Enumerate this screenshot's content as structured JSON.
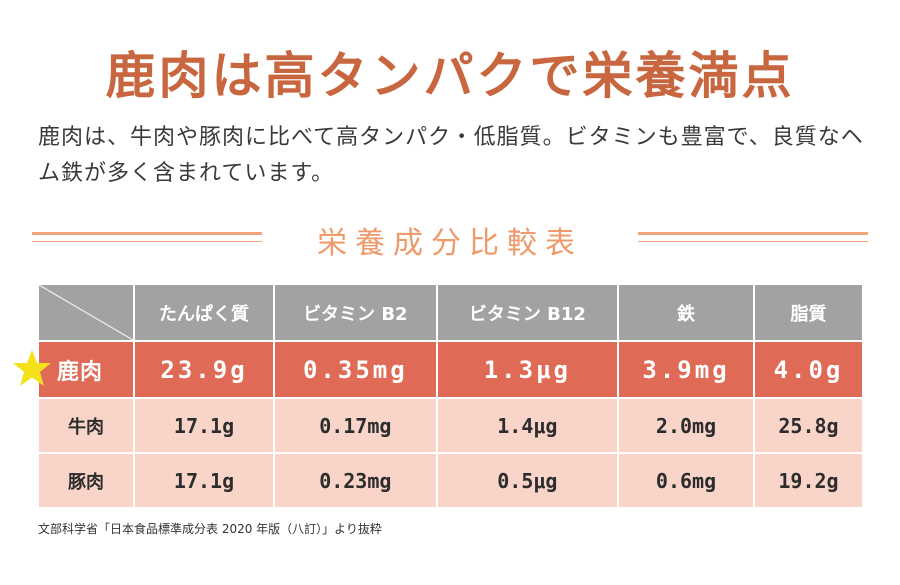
{
  "title": "鹿肉は高タンパクで栄養満点",
  "intro": "鹿肉は、牛肉や豚肉に比べて高タンパク・低脂質。ビタミンも豊富で、良質なヘム鉄が多く含まれています。",
  "section_title": "栄養成分比較表",
  "table": {
    "headers": [
      "たんぱく質",
      "ビタミン B2",
      "ビタミン B12",
      "鉄",
      "脂質"
    ],
    "rows": [
      {
        "label": "鹿肉",
        "values": [
          "23.9g",
          "0.35mg",
          "1.3μg",
          "3.9mg",
          "4.0g"
        ]
      },
      {
        "label": "牛肉",
        "values": [
          "17.1g",
          "0.17mg",
          "1.4μg",
          "2.0mg",
          "25.8g"
        ]
      },
      {
        "label": "豚肉",
        "values": [
          "17.1g",
          "0.23mg",
          "0.5μg",
          "0.6mg",
          "19.2g"
        ]
      }
    ]
  },
  "source": "文部科学省「日本食品標準成分表 2020 年版（八訂）」より抜粋",
  "colors": {
    "title": "#c8673f",
    "accent_rule": "#f0a479",
    "header_bg": "#a2a2a2",
    "highlight_row": "#df6a55",
    "normal_row": "#f9d5c9",
    "star": "#f4e11b"
  },
  "icons": {
    "highlight_marker": "star-icon"
  }
}
